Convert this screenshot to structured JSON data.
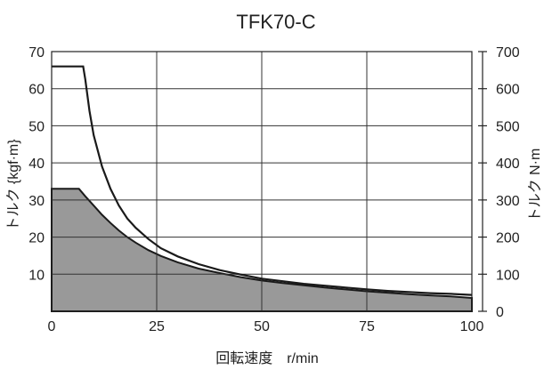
{
  "chart_data": {
    "type": "area",
    "title": "TFK70-C",
    "xlabel": "回転速度　r/min",
    "ylabel_left": "トルク {kgf·m}",
    "ylabel_right": "トルク N·m",
    "xlim": [
      0,
      100
    ],
    "ylim_left": [
      0,
      70
    ],
    "ylim_right": [
      0,
      700
    ],
    "x_ticks": [
      "0",
      "25",
      "50",
      "75",
      "100"
    ],
    "y_ticks_left": [
      "10",
      "20",
      "30",
      "40",
      "50",
      "60",
      "70"
    ],
    "y_ticks_right": [
      "0",
      "100",
      "200",
      "300",
      "400",
      "500",
      "600",
      "700"
    ],
    "grid": true,
    "series": [
      {
        "role": "max-torque-line",
        "color": "#1a1a1a",
        "x": [
          0,
          7.5,
          8,
          9,
          10,
          12,
          14,
          16,
          18,
          20,
          23,
          26,
          30,
          35,
          40,
          45,
          50,
          55,
          60,
          65,
          70,
          75,
          80,
          85,
          90,
          95,
          100
        ],
        "y": [
          66,
          66,
          62.5,
          54,
          47.5,
          39,
          33,
          28.5,
          25,
          22.5,
          19.5,
          17,
          14.8,
          12.7,
          11.1,
          9.9,
          8.8,
          8.1,
          7.4,
          6.9,
          6.4,
          5.9,
          5.5,
          5.2,
          4.9,
          4.7,
          4.4
        ]
      },
      {
        "role": "continuous-torque-area",
        "color": "#999999",
        "x": [
          0,
          6.5,
          8,
          10,
          12,
          14,
          16,
          18,
          20,
          23,
          26,
          30,
          35,
          40,
          45,
          50,
          55,
          60,
          65,
          70,
          75,
          80,
          85,
          90,
          95,
          100
        ],
        "y": [
          33,
          33,
          31,
          28.5,
          26,
          23.8,
          21.8,
          20,
          18.5,
          16.5,
          14.9,
          13.2,
          11.5,
          10.3,
          9.2,
          8.3,
          7.6,
          7,
          6.4,
          5.9,
          5.4,
          5,
          4.6,
          4.3,
          4,
          3.6
        ]
      }
    ]
  }
}
